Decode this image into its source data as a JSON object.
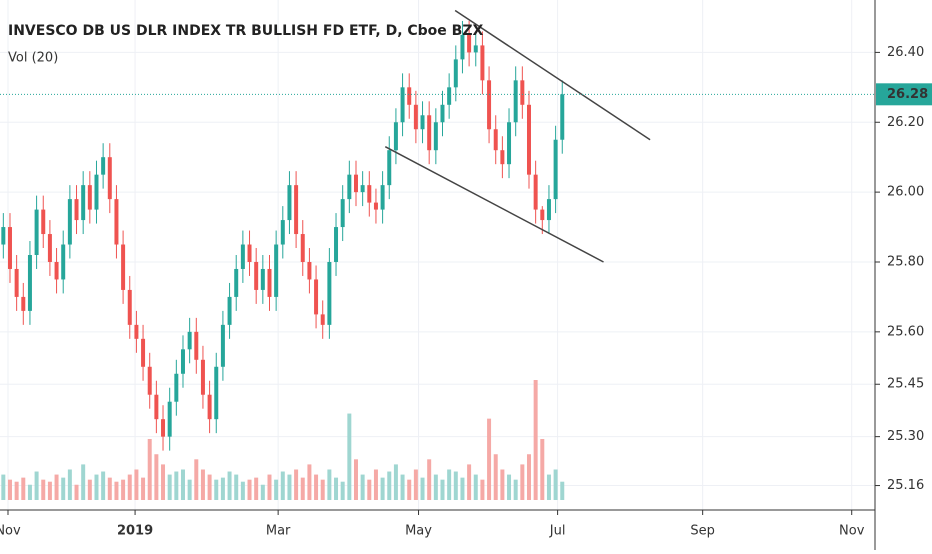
{
  "chart_data": {
    "type": "candlestick",
    "title": "INVESCO DB US DLR INDEX TR BULLISH FD ETF, D, Cboe BZX",
    "subtitle": "Vol (20)",
    "up_color": "#26a69a",
    "down_color": "#ef5350",
    "volume_up_color": "#9fd6d1",
    "volume_down_color": "#f5a9a6",
    "grid": true,
    "xlim": [
      -0.5,
      131
    ],
    "xticks": [
      {
        "value": 0.7,
        "label": "Nov"
      },
      {
        "value": 19.8,
        "label": "2019"
      },
      {
        "value": 41.3,
        "label": "Mar"
      },
      {
        "value": 62.4,
        "label": "May"
      },
      {
        "value": 83.3,
        "label": "Jul"
      },
      {
        "value": 105.1,
        "label": "Sep"
      },
      {
        "value": 127.5,
        "label": "Nov"
      }
    ],
    "ylim": [
      25.09,
      26.55
    ],
    "yticks": [
      25.16,
      {
        "value": 25.3,
        "label": "25.30"
      },
      25.45,
      {
        "value": 25.6,
        "label": "25.60"
      },
      {
        "value": 25.8,
        "label": "25.80"
      },
      {
        "value": 26,
        "label": "26.00"
      },
      {
        "value": 26.2,
        "label": "26.20"
      },
      {
        "value": 26.4,
        "label": "26.40"
      }
    ],
    "last_price": 26.28,
    "open": [
      25.85,
      25.9,
      25.78,
      25.7,
      25.66,
      25.82,
      25.95,
      25.88,
      25.8,
      25.75,
      25.85,
      25.98,
      25.92,
      26.02,
      25.95,
      26.05,
      26.1,
      25.98,
      25.85,
      25.72,
      25.62,
      25.58,
      25.5,
      25.42,
      25.35,
      25.3,
      25.4,
      25.48,
      25.55,
      25.6,
      25.52,
      25.42,
      25.35,
      25.5,
      25.62,
      25.7,
      25.78,
      25.85,
      25.8,
      25.72,
      25.78,
      25.7,
      25.85,
      25.92,
      26.02,
      25.88,
      25.8,
      25.75,
      25.65,
      25.62,
      25.8,
      25.9,
      25.98,
      26.05,
      26.0,
      26.02,
      25.97,
      25.95,
      26.02,
      26.12,
      26.2,
      26.3,
      26.25,
      26.18,
      26.22,
      26.12,
      26.2,
      26.25,
      26.3,
      26.38,
      26.45,
      26.4,
      26.42,
      26.32,
      26.18,
      26.12,
      26.08,
      26.2,
      26.32,
      26.25,
      26.05,
      25.95,
      25.92,
      25.98,
      26.15
    ],
    "high": [
      25.94,
      25.94,
      25.82,
      25.74,
      25.86,
      25.99,
      25.99,
      25.92,
      25.84,
      25.89,
      26.02,
      26.02,
      26.06,
      26.06,
      26.09,
      26.14,
      26.14,
      26.02,
      25.89,
      25.76,
      25.66,
      25.62,
      25.54,
      25.46,
      25.39,
      25.44,
      25.52,
      25.59,
      25.64,
      25.64,
      25.56,
      25.46,
      25.54,
      25.66,
      25.74,
      25.82,
      25.89,
      25.89,
      25.84,
      25.82,
      25.82,
      25.89,
      25.96,
      26.06,
      26.06,
      25.92,
      25.84,
      25.79,
      25.69,
      25.84,
      25.94,
      26.02,
      26.09,
      26.09,
      26.06,
      26.06,
      26.01,
      26.06,
      26.16,
      26.24,
      26.34,
      26.34,
      26.29,
      26.26,
      26.26,
      26.24,
      26.29,
      26.34,
      26.42,
      26.49,
      26.49,
      26.46,
      26.46,
      26.36,
      26.22,
      26.16,
      26.24,
      26.36,
      26.36,
      26.29,
      26.09,
      25.96,
      26.02,
      26.19,
      26.32
    ],
    "low": [
      25.81,
      25.74,
      25.66,
      25.62,
      25.62,
      25.78,
      25.84,
      25.76,
      25.71,
      25.71,
      25.81,
      25.88,
      25.88,
      25.91,
      25.91,
      26.01,
      25.94,
      25.81,
      25.68,
      25.58,
      25.54,
      25.46,
      25.38,
      25.31,
      25.26,
      25.26,
      25.36,
      25.44,
      25.51,
      25.48,
      25.38,
      25.31,
      25.31,
      25.46,
      25.58,
      25.66,
      25.74,
      25.76,
      25.68,
      25.68,
      25.66,
      25.66,
      25.81,
      25.88,
      25.84,
      25.76,
      25.71,
      25.61,
      25.58,
      25.58,
      25.76,
      25.86,
      25.94,
      25.96,
      25.96,
      25.93,
      25.91,
      25.91,
      25.98,
      26.08,
      26.16,
      26.21,
      26.14,
      26.14,
      26.08,
      26.08,
      26.16,
      26.21,
      26.26,
      26.34,
      26.36,
      26.36,
      26.28,
      26.14,
      26.08,
      26.04,
      26.04,
      26.16,
      26.21,
      26.01,
      25.91,
      25.88,
      25.88,
      25.94,
      26.11
    ],
    "close": [
      25.9,
      25.78,
      25.7,
      25.66,
      25.82,
      25.95,
      25.88,
      25.8,
      25.75,
      25.85,
      25.98,
      25.92,
      26.02,
      25.95,
      26.05,
      26.1,
      25.98,
      25.85,
      25.72,
      25.62,
      25.58,
      25.5,
      25.42,
      25.35,
      25.3,
      25.4,
      25.48,
      25.55,
      25.6,
      25.52,
      25.42,
      25.35,
      25.5,
      25.62,
      25.7,
      25.78,
      25.85,
      25.8,
      25.72,
      25.78,
      25.7,
      25.85,
      25.92,
      26.02,
      25.88,
      25.8,
      25.75,
      25.65,
      25.62,
      25.8,
      25.9,
      25.98,
      26.05,
      26.0,
      26.02,
      25.97,
      25.95,
      26.02,
      26.12,
      26.2,
      26.3,
      26.25,
      26.18,
      26.22,
      26.12,
      26.2,
      26.25,
      26.3,
      26.38,
      26.45,
      26.4,
      26.42,
      26.32,
      26.18,
      26.12,
      26.08,
      26.2,
      26.32,
      26.25,
      26.05,
      25.95,
      25.92,
      25.98,
      26.15,
      26.28
    ],
    "volume": [
      25,
      20,
      18,
      22,
      15,
      28,
      20,
      18,
      25,
      22,
      30,
      15,
      35,
      20,
      25,
      28,
      22,
      18,
      20,
      25,
      30,
      22,
      60,
      45,
      35,
      25,
      28,
      30,
      20,
      40,
      30,
      25,
      20,
      22,
      28,
      25,
      18,
      20,
      22,
      15,
      25,
      20,
      28,
      25,
      30,
      22,
      35,
      25,
      20,
      30,
      22,
      18,
      85,
      40,
      25,
      20,
      30,
      22,
      28,
      35,
      25,
      20,
      30,
      22,
      40,
      25,
      20,
      30,
      28,
      22,
      35,
      25,
      20,
      80,
      45,
      30,
      25,
      20,
      35,
      45,
      118,
      60,
      25,
      30,
      18
    ],
    "trendlines": [
      {
        "x": [
          67.9,
          97.2
        ],
        "y": [
          26.52,
          26.15
        ]
      },
      {
        "x": [
          57.4,
          90.2
        ],
        "y": [
          26.13,
          25.8
        ]
      }
    ]
  }
}
